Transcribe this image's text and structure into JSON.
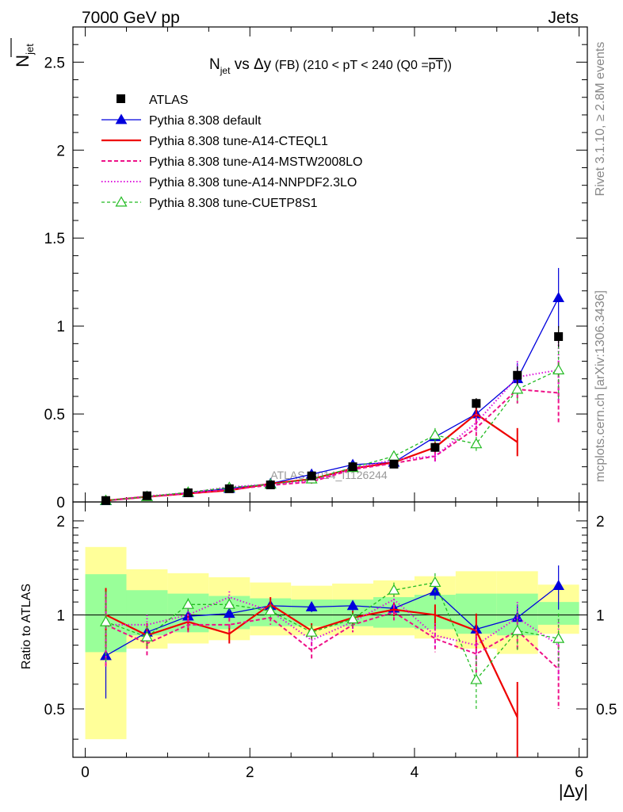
{
  "header": {
    "left": "7000 GeV pp",
    "right": "Jets"
  },
  "side_labels": {
    "top": "Rivet 3.1.10, ≥ 2.8M events",
    "bottom": "mcplots.cern.ch [arXiv:1306.3436]"
  },
  "watermark": "ATLAS_2014_I1126244",
  "chart_data": {
    "type": "line",
    "title": {
      "n": "N",
      "n_sub": "jet",
      "mid": " vs Δy",
      "fb": " (FB)",
      "range": " (210 < pT < 240 (Q0 =",
      "q": "pT",
      "end": "))"
    },
    "ylabel": {
      "n": "N",
      "sub": "jet"
    },
    "ratio_ylabel": "Ratio to ATLAS",
    "xlabel": "|Δy|",
    "xlim": [
      -0.15,
      6.1
    ],
    "ylim": [
      0,
      2.7
    ],
    "ratio_ylim": [
      0.35,
      2.3
    ],
    "x_ticks": [
      0,
      2,
      4,
      6
    ],
    "x_tick_labels": [
      "0",
      "2",
      "4",
      "6"
    ],
    "y_ticks": [
      0,
      0.5,
      1,
      1.5,
      2,
      2.5
    ],
    "y_tick_labels": [
      "0",
      "0.5",
      "1",
      "1.5",
      "2",
      "2.5"
    ],
    "ratio_ticks": [
      0.5,
      1,
      2
    ],
    "ratio_tick_labels": [
      "0.5",
      "1",
      "2"
    ],
    "x": [
      0.25,
      0.75,
      1.25,
      1.75,
      2.25,
      2.75,
      3.25,
      3.75,
      4.25,
      4.75,
      5.25,
      5.75
    ],
    "bands": {
      "edges": [
        0,
        0.5,
        1,
        1.5,
        2,
        2.5,
        3,
        3.5,
        4,
        4.5,
        5,
        5.5,
        6
      ],
      "yellow_lo": [
        0.4,
        0.78,
        0.81,
        0.83,
        0.86,
        0.86,
        0.86,
        0.86,
        0.84,
        0.78,
        0.75,
        0.87
      ],
      "yellow_hi": [
        1.65,
        1.4,
        1.36,
        1.32,
        1.27,
        1.24,
        1.26,
        1.29,
        1.33,
        1.38,
        1.38,
        1.25
      ],
      "green_lo": [
        0.76,
        0.86,
        0.88,
        0.9,
        0.92,
        0.92,
        0.92,
        0.91,
        0.9,
        0.87,
        0.86,
        0.93
      ],
      "green_hi": [
        1.35,
        1.2,
        1.17,
        1.15,
        1.13,
        1.12,
        1.12,
        1.14,
        1.16,
        1.17,
        1.17,
        1.1
      ]
    },
    "data": {
      "name": "ATLAS",
      "y": [
        0.008,
        0.035,
        0.052,
        0.075,
        0.097,
        0.148,
        0.2,
        0.215,
        0.31,
        0.56,
        0.72,
        0.94
      ],
      "err": [
        0.004,
        0.006,
        0.007,
        0.009,
        0.01,
        0.014,
        0.016,
        0.018,
        0.025,
        0.03,
        0.05,
        0.06
      ]
    },
    "series": [
      {
        "name": "Pythia 8.308 default",
        "color": "#0000dd",
        "dash": "",
        "width": 1.3,
        "marker": "triangle-filled",
        "y": [
          0.006,
          0.031,
          0.052,
          0.076,
          0.104,
          0.157,
          0.212,
          0.225,
          0.37,
          0.5,
          0.7,
          1.16
        ],
        "err": [
          0.003,
          0.005,
          0.007,
          0.008,
          0.011,
          0.014,
          0.018,
          0.02,
          0.03,
          0.05,
          0.09,
          0.17
        ],
        "ratio": [
          0.74,
          0.88,
          0.99,
          1.01,
          1.07,
          1.06,
          1.07,
          1.05,
          1.19,
          0.9,
          0.98,
          1.24
        ],
        "ratio_err": [
          0.2,
          0.06,
          0.05,
          0.05,
          0.05,
          0.04,
          0.04,
          0.05,
          0.07,
          0.08,
          0.1,
          0.2
        ]
      },
      {
        "name": "Pythia 8.308 tune-A14-CTEQL1",
        "color": "#ee0000",
        "dash": "",
        "width": 2.2,
        "marker": "none",
        "y": [
          0.008,
          0.03,
          0.048,
          0.066,
          0.104,
          0.13,
          0.19,
          0.225,
          0.31,
          0.5,
          0.34,
          null
        ],
        "err": [
          0.004,
          0.006,
          0.007,
          0.008,
          0.011,
          0.013,
          0.016,
          0.02,
          0.03,
          0.06,
          0.08,
          null
        ],
        "ratio": [
          1.0,
          0.86,
          0.95,
          0.87,
          1.08,
          0.89,
          0.98,
          1.04,
          1.0,
          0.89,
          0.47,
          null
        ],
        "ratio_err": [
          0.22,
          0.08,
          0.06,
          0.06,
          0.06,
          0.05,
          0.05,
          0.05,
          0.08,
          0.12,
          0.14,
          null
        ]
      },
      {
        "name": "Pythia 8.308 tune-A14-MSTW2008LO",
        "color": "#ee1188",
        "dash": "5,3",
        "width": 2.0,
        "marker": "none",
        "y": [
          0.007,
          0.028,
          0.048,
          0.07,
          0.095,
          0.114,
          0.185,
          0.22,
          0.26,
          0.42,
          0.64,
          0.62
        ],
        "err": [
          0.003,
          0.005,
          0.007,
          0.008,
          0.01,
          0.012,
          0.016,
          0.018,
          0.03,
          0.05,
          0.08,
          0.18
        ],
        "ratio": [
          0.93,
          0.81,
          0.93,
          0.93,
          0.98,
          0.77,
          0.93,
          1.02,
          0.84,
          0.75,
          0.89,
          0.67
        ],
        "ratio_err": [
          0.25,
          0.07,
          0.05,
          0.05,
          0.05,
          0.05,
          0.05,
          0.06,
          0.08,
          0.1,
          0.12,
          0.17
        ]
      },
      {
        "name": "Pythia 8.308 tune-A14-NNPDF2.3LO",
        "color": "#dd11dd",
        "dash": "1.5,2.5",
        "width": 2.0,
        "marker": "none",
        "y": [
          0.007,
          0.033,
          0.052,
          0.085,
          0.1,
          0.12,
          0.19,
          0.24,
          0.26,
          0.45,
          0.71,
          0.75
        ],
        "err": [
          0.003,
          0.005,
          0.007,
          0.008,
          0.01,
          0.012,
          0.016,
          0.018,
          0.03,
          0.05,
          0.09,
          0.18
        ],
        "ratio": [
          0.93,
          0.93,
          1.0,
          1.14,
          1.03,
          0.83,
          0.95,
          1.12,
          0.86,
          0.8,
          0.98,
          0.8
        ],
        "ratio_err": [
          0.25,
          0.07,
          0.05,
          0.05,
          0.05,
          0.05,
          0.05,
          0.06,
          0.08,
          0.1,
          0.12,
          0.17
        ]
      },
      {
        "name": "Pythia 8.308 tune-CUETP8S1",
        "color": "#22bb22",
        "dash": "4,3",
        "width": 1.3,
        "marker": "triangle-open",
        "y": [
          0.008,
          0.03,
          0.055,
          0.082,
          0.1,
          0.13,
          0.195,
          0.26,
          0.38,
          0.33,
          0.64,
          0.75
        ],
        "err": [
          0.004,
          0.005,
          0.007,
          0.008,
          0.01,
          0.013,
          0.016,
          0.02,
          0.04,
          0.04,
          0.08,
          0.17
        ],
        "ratio": [
          0.95,
          0.85,
          1.08,
          1.08,
          1.03,
          0.88,
          0.97,
          1.2,
          1.27,
          0.62,
          0.89,
          0.84
        ],
        "ratio_err": [
          0.24,
          0.07,
          0.05,
          0.05,
          0.05,
          0.05,
          0.05,
          0.07,
          0.09,
          0.12,
          0.12,
          0.17
        ]
      }
    ]
  }
}
